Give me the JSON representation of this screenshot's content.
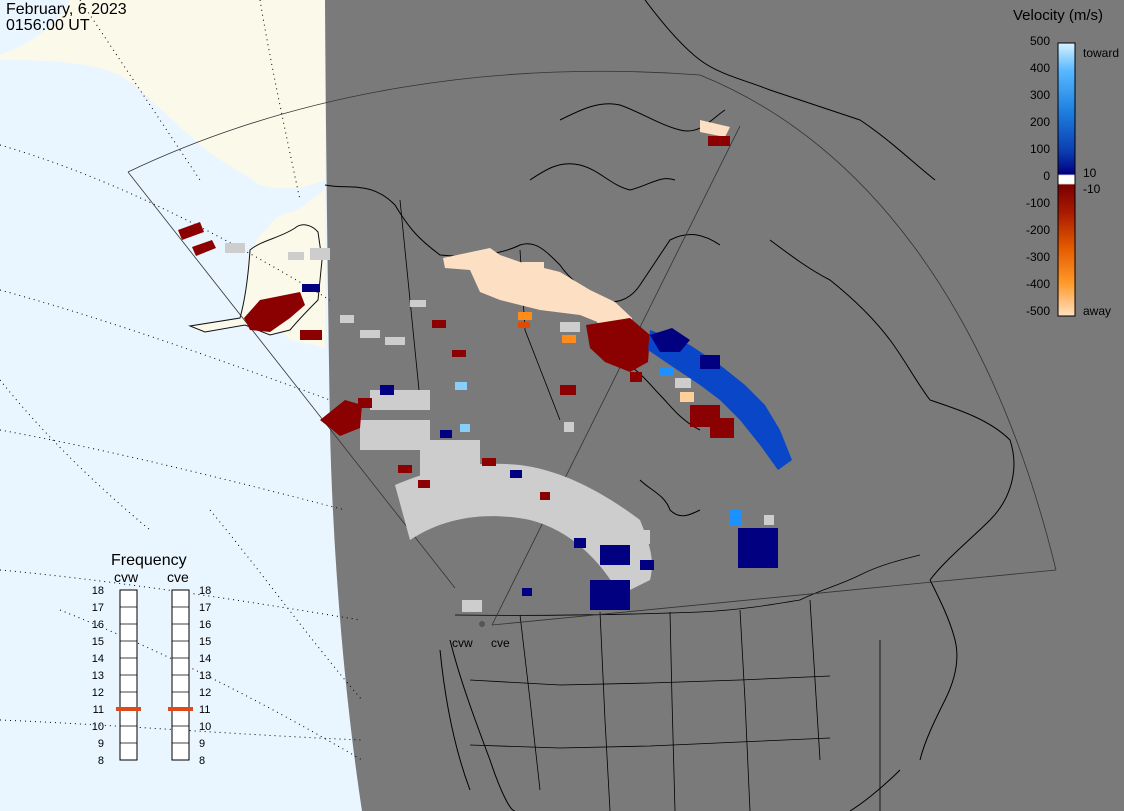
{
  "header": {
    "date": "February, 6 2023",
    "time": "0156:00 UT"
  },
  "colors": {
    "land": "#7a7a7a",
    "ocean": "#eaf6ff",
    "ice": "#fbf9ea",
    "gray_scatter": "#cdcdcd",
    "frequency_marker": "#e04a1a"
  },
  "legend": {
    "title": "Velocity (m/s)",
    "ticks": [
      "500",
      "400",
      "300",
      "200",
      "100",
      "0",
      "-100",
      "-200",
      "-300",
      "-400",
      "-500"
    ],
    "toward_label": "toward",
    "away_label": "away",
    "pos_cut_label": "10",
    "neg_cut_label": "-10"
  },
  "frequency": {
    "title": "Frequency",
    "scale": [
      "18",
      "17",
      "16",
      "15",
      "14",
      "13",
      "12",
      "11",
      "10",
      "9",
      "8"
    ],
    "radars": [
      {
        "name": "cvw",
        "value_mhz": 11
      },
      {
        "name": "cve",
        "value_mhz": 11
      }
    ]
  },
  "radar_sites": [
    {
      "name": "cvw",
      "icon": "radar-site-dot"
    },
    {
      "name": "cve",
      "icon": "radar-site-dot"
    }
  ]
}
